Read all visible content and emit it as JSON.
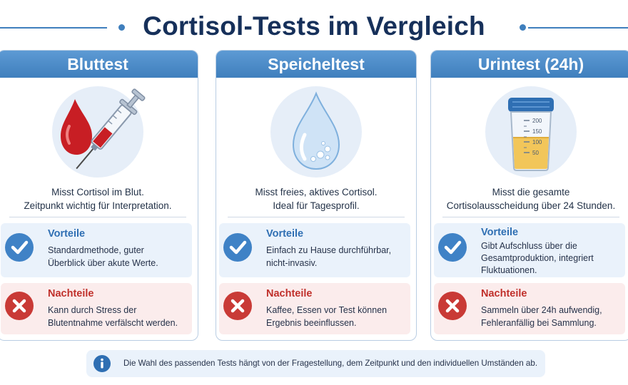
{
  "title": "Cortisol-Tests im Vergleich",
  "cards": [
    {
      "header": "Bluttest",
      "icon": "blood-syringe-icon",
      "desc_lines": [
        "Misst Cortisol im Blut.",
        "Zeitpunkt wichtig für Interpretation."
      ],
      "pro_title": "Vorteile",
      "pro_lines": [
        "Standardmethode, guter",
        "Überblick über akute Werte."
      ],
      "con_title": "Nachteile",
      "con_lines": [
        "Kann durch Stress der",
        "Blutentnahme verfälscht werden."
      ]
    },
    {
      "header": "Speicheltest",
      "icon": "saliva-drop-icon",
      "desc_lines": [
        "Misst freies, aktives Cortisol.",
        "Ideal für Tagesprofil."
      ],
      "pro_title": "Vorteile",
      "pro_lines": [
        "Einfach zu Hause durchführbar,",
        "nicht-invasiv."
      ],
      "con_title": "Nachteile",
      "con_lines": [
        "Kaffee, Essen vor Test können",
        "Ergebnis beeinflussen."
      ]
    },
    {
      "header": "Urintest (24h)",
      "icon": "urine-cup-icon",
      "desc_lines": [
        "Misst die gesamte",
        "Cortisolausscheidung über 24 Stunden."
      ],
      "pro_title": "Vorteile",
      "pro_lines": [
        "Gibt Aufschluss über die",
        "Gesamtproduktion, integriert",
        "Fluktuationen."
      ],
      "con_title": "Nachteile",
      "con_lines": [
        "Sammeln über 24h aufwendig,",
        "Fehleranfällig bei Sammlung."
      ]
    }
  ],
  "cup_scale": [
    "200",
    "150",
    "100",
    "50"
  ],
  "info_text": "Die Wahl des passenden Tests hängt von der Fragestellung, dem Zeitpunkt und den individuellen Umständen ab.",
  "colors": {
    "accent": "#3f7fbd",
    "title": "#16305a",
    "pro": "#3f82c6",
    "con": "#c93a36"
  }
}
